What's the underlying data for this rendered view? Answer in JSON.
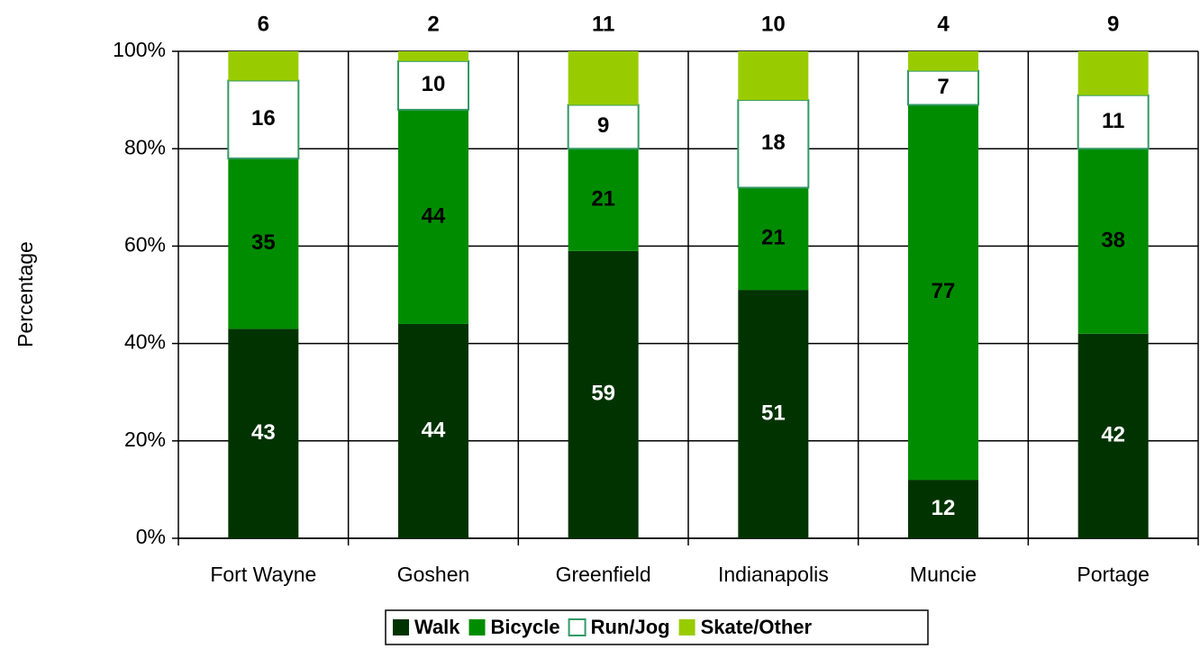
{
  "chart_data": {
    "type": "stacked_bar",
    "y_label": "Percentage",
    "categories": [
      "Fort Wayne",
      "Goshen",
      "Greenfield",
      "Indianapolis",
      "Muncie",
      "Portage"
    ],
    "series": [
      {
        "name": "Walk",
        "color": "#003300",
        "label_color": "#ffffff",
        "values": [
          43,
          44,
          59,
          51,
          12,
          42
        ]
      },
      {
        "name": "Bicycle",
        "color": "#008c00",
        "label_color": "#000000",
        "values": [
          35,
          44,
          21,
          21,
          77,
          38
        ]
      },
      {
        "name": "Run/Jog",
        "color": "#ffffff",
        "border": "#339966",
        "label_color": "#000000",
        "values": [
          16,
          10,
          9,
          18,
          7,
          11
        ]
      },
      {
        "name": "Skate/Other",
        "color": "#99cc00",
        "label_color": "#000000",
        "values": [
          6,
          2,
          11,
          10,
          4,
          9
        ]
      }
    ],
    "ylim": [
      0,
      100
    ],
    "yticks": [
      {
        "value": 0,
        "label": "0%"
      },
      {
        "value": 20,
        "label": "20%"
      },
      {
        "value": 40,
        "label": "40%"
      },
      {
        "value": 60,
        "label": "60%"
      },
      {
        "value": 80,
        "label": "80%"
      },
      {
        "value": 100,
        "label": "100%"
      }
    ],
    "grid": true,
    "legend": "bottom"
  }
}
